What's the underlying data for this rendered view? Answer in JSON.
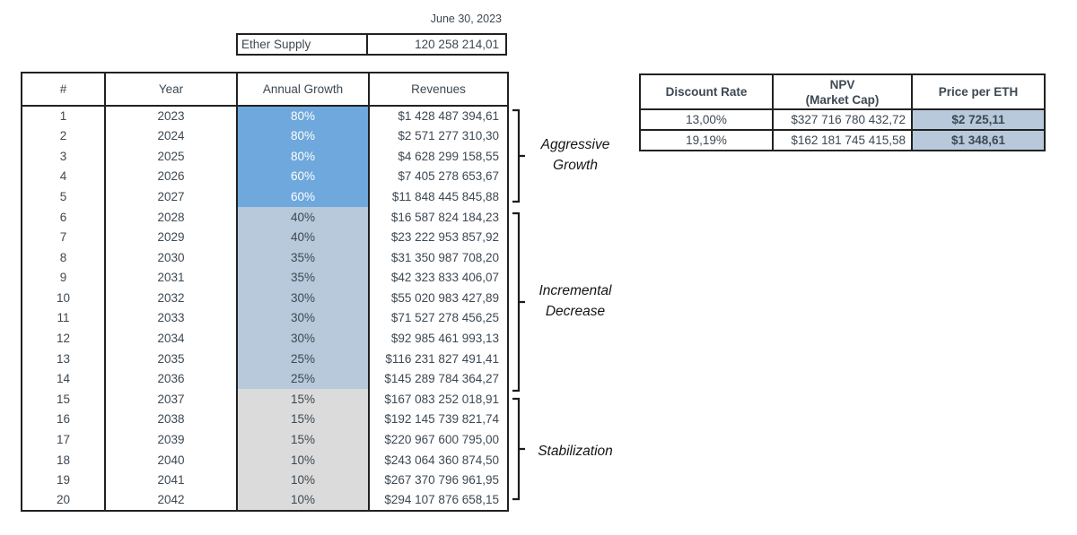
{
  "date_label": "June 30, 2023",
  "ether_supply": {
    "label": "Ether Supply",
    "value": "120 258 214,01"
  },
  "main_table": {
    "headers": [
      "#",
      "Year",
      "Annual Growth",
      "Revenues"
    ],
    "rows": [
      {
        "num": "1",
        "year": "2023",
        "growth": "80%",
        "revenue": "$1 428 487 394,61",
        "phase": "aggressive"
      },
      {
        "num": "2",
        "year": "2024",
        "growth": "80%",
        "revenue": "$2 571 277 310,30",
        "phase": "aggressive"
      },
      {
        "num": "3",
        "year": "2025",
        "growth": "80%",
        "revenue": "$4 628 299 158,55",
        "phase": "aggressive"
      },
      {
        "num": "4",
        "year": "2026",
        "growth": "60%",
        "revenue": "$7 405 278 653,67",
        "phase": "aggressive"
      },
      {
        "num": "5",
        "year": "2027",
        "growth": "60%",
        "revenue": "$11 848 445 845,88",
        "phase": "aggressive"
      },
      {
        "num": "6",
        "year": "2028",
        "growth": "40%",
        "revenue": "$16 587 824 184,23",
        "phase": "incremental"
      },
      {
        "num": "7",
        "year": "2029",
        "growth": "40%",
        "revenue": "$23 222 953 857,92",
        "phase": "incremental"
      },
      {
        "num": "8",
        "year": "2030",
        "growth": "35%",
        "revenue": "$31 350 987 708,20",
        "phase": "incremental"
      },
      {
        "num": "9",
        "year": "2031",
        "growth": "35%",
        "revenue": "$42 323 833 406,07",
        "phase": "incremental"
      },
      {
        "num": "10",
        "year": "2032",
        "growth": "30%",
        "revenue": "$55 020 983 427,89",
        "phase": "incremental"
      },
      {
        "num": "11",
        "year": "2033",
        "growth": "30%",
        "revenue": "$71 527 278 456,25",
        "phase": "incremental"
      },
      {
        "num": "12",
        "year": "2034",
        "growth": "30%",
        "revenue": "$92 985 461 993,13",
        "phase": "incremental"
      },
      {
        "num": "13",
        "year": "2035",
        "growth": "25%",
        "revenue": "$116 231 827 491,41",
        "phase": "incremental"
      },
      {
        "num": "14",
        "year": "2036",
        "growth": "25%",
        "revenue": "$145 289 784 364,27",
        "phase": "incremental"
      },
      {
        "num": "15",
        "year": "2037",
        "growth": "15%",
        "revenue": "$167 083 252 018,91",
        "phase": "stabilization"
      },
      {
        "num": "16",
        "year": "2038",
        "growth": "15%",
        "revenue": "$192 145 739 821,74",
        "phase": "stabilization"
      },
      {
        "num": "17",
        "year": "2039",
        "growth": "15%",
        "revenue": "$220 967 600 795,00",
        "phase": "stabilization"
      },
      {
        "num": "18",
        "year": "2040",
        "growth": "10%",
        "revenue": "$243 064 360 874,50",
        "phase": "stabilization"
      },
      {
        "num": "19",
        "year": "2041",
        "growth": "10%",
        "revenue": "$267 370 796 961,95",
        "phase": "stabilization"
      },
      {
        "num": "20",
        "year": "2042",
        "growth": "10%",
        "revenue": "$294 107 876 658,15",
        "phase": "stabilization"
      }
    ]
  },
  "phases": [
    {
      "label": "Aggressive Growth",
      "lines": [
        "Aggressive",
        "Growth"
      ]
    },
    {
      "label": "Incremental Decrease",
      "lines": [
        "Incremental",
        "Decrease"
      ]
    },
    {
      "label": "Stabilization",
      "lines": [
        "Stabilization"
      ]
    }
  ],
  "npv_table": {
    "headers": [
      {
        "lines": [
          "Discount Rate"
        ]
      },
      {
        "lines": [
          "NPV",
          "(Market Cap)"
        ]
      },
      {
        "lines": [
          "Price per ETH"
        ]
      }
    ],
    "rows": [
      {
        "discount_rate": "13,00%",
        "npv": "$327 716 780 432,72",
        "price": "$2 725,11"
      },
      {
        "discount_rate": "19,19%",
        "npv": "$162 181 745 415,58",
        "price": "$1 348,61"
      }
    ]
  },
  "colors": {
    "aggressive_fill": "#6fa8dc",
    "incremental_fill": "#b8c9db",
    "stabilization_fill": "#dbdbdb",
    "price_highlight": "#b8c9db",
    "text": "#3d4852",
    "border": "#212121"
  }
}
